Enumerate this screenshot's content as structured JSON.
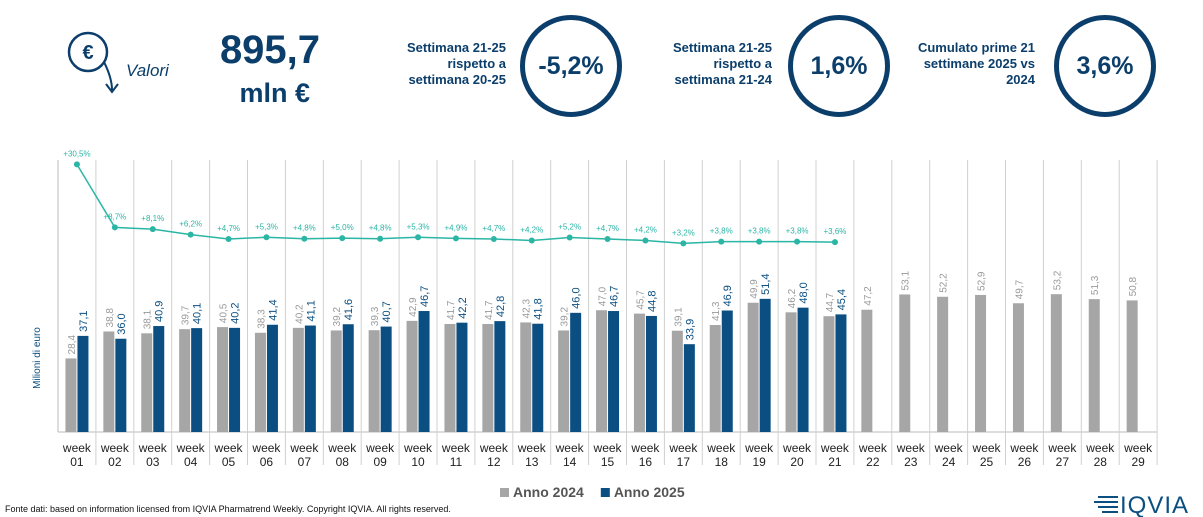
{
  "header": {
    "kpi_label": "Valori",
    "kpi_value": "895,7",
    "kpi_unit": "mln €",
    "blocks": [
      {
        "label": "Settimana 21-25 rispetto a settimana 20-25",
        "value": "-5,2%"
      },
      {
        "label": "Settimana 21-25 rispetto a settimana 21-24",
        "value": "1,6%"
      },
      {
        "label": "Cumulato prime 21 settimane 2025 vs 2024",
        "value": "3,6%"
      }
    ]
  },
  "chart_data": {
    "type": "bar",
    "y_label": "Milioni di euro",
    "categories": [
      "week 01",
      "week 02",
      "week 03",
      "week 04",
      "week 05",
      "week 06",
      "week 07",
      "week 08",
      "week 09",
      "week 10",
      "week 11",
      "week 12",
      "week 13",
      "week 14",
      "week 15",
      "week 16",
      "week 17",
      "week 18",
      "week 19",
      "week 20",
      "week 21",
      "week 22",
      "week 23",
      "week 24",
      "week 25",
      "week 26",
      "week 27",
      "week 28",
      "week 29"
    ],
    "ylim": [
      0,
      105
    ],
    "y2lim": [
      -62,
      32
    ],
    "grid": true,
    "legend": "bottom",
    "series": [
      {
        "name": "Anno 2024",
        "color": "#a6a6a6",
        "values": [
          28.4,
          38.8,
          38.1,
          39.7,
          40.5,
          38.3,
          40.2,
          39.2,
          39.3,
          42.9,
          41.7,
          41.7,
          42.3,
          39.2,
          47.0,
          45.7,
          39.1,
          41.3,
          49.9,
          46.2,
          44.7,
          47.2,
          53.1,
          52.2,
          52.9,
          49.7,
          53.2,
          51.3,
          50.8
        ],
        "value_labels": [
          "28,4",
          "38,8",
          "38,1",
          "39,7",
          "40,5",
          "38,3",
          "40,2",
          "39,2",
          "39,3",
          "42,9",
          "41,7",
          "41,7",
          "42,3",
          "39,2",
          "47,0",
          "45,7",
          "39,1",
          "41,3",
          "49,9",
          "46,2",
          "44,7",
          "47,2",
          "53,1",
          "52,2",
          "52,9",
          "49,7",
          "53,2",
          "51,3",
          "50,8"
        ]
      },
      {
        "name": "Anno 2025",
        "color": "#0b4f82",
        "values": [
          37.1,
          36.0,
          40.9,
          40.1,
          40.2,
          41.4,
          41.1,
          41.6,
          40.7,
          46.7,
          42.2,
          42.8,
          41.8,
          46.0,
          46.7,
          44.8,
          33.9,
          46.9,
          51.4,
          48.0,
          45.4,
          null,
          null,
          null,
          null,
          null,
          null,
          null,
          null
        ],
        "value_labels": [
          "37,1",
          "36,0",
          "40,9",
          "40,1",
          "40,2",
          "41,4",
          "41,1",
          "41,6",
          "40,7",
          "46,7",
          "42,2",
          "42,8",
          "41,8",
          "46,0",
          "46,7",
          "44,8",
          "33,9",
          "46,9",
          "51,4",
          "48,0",
          "45,4",
          null,
          null,
          null,
          null,
          null,
          null,
          null,
          null
        ]
      },
      {
        "type": "line",
        "axis": "y2",
        "color": "#2ab5a5",
        "values": [
          30.5,
          8.7,
          8.1,
          6.2,
          4.7,
          5.3,
          4.8,
          5.0,
          4.8,
          5.3,
          4.9,
          4.7,
          4.2,
          5.2,
          4.7,
          4.2,
          3.2,
          3.8,
          3.8,
          3.8,
          3.6,
          null,
          null,
          null,
          null,
          null,
          null,
          null,
          null
        ],
        "value_labels": [
          "+30,5%",
          "+8,7%",
          "+8,1%",
          "+6,2%",
          "+4,7%",
          "+5,3%",
          "+4,8%",
          "+5,0%",
          "+4,8%",
          "+5,3%",
          "+4,9%",
          "+4,7%",
          "+4,2%",
          "+5,2%",
          "+4,7%",
          "+4,2%",
          "+3,2%",
          "+3,8%",
          "+3,8%",
          "+3,8%",
          "+3,6%",
          null,
          null,
          null,
          null,
          null,
          null,
          null,
          null
        ]
      }
    ]
  },
  "footer": {
    "source": "Fonte dati: based on information licensed from IQVIA Pharmatrend Weekly. Copyright IQVIA. All rights reserved.",
    "logo": "IQVIA"
  }
}
